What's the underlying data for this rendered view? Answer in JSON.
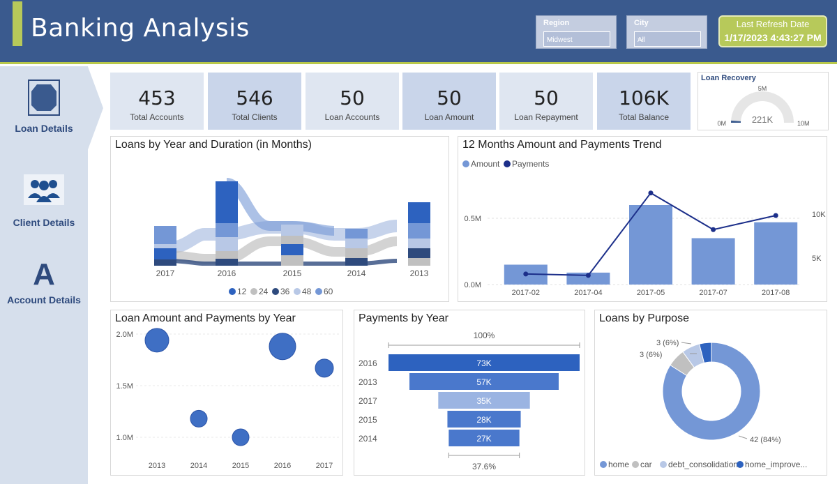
{
  "header": {
    "title": "Banking Analysis",
    "region": {
      "label": "Region",
      "value": "Midwest"
    },
    "city": {
      "label": "City",
      "value": "All"
    },
    "refresh": {
      "label": "Last Refresh Date",
      "value": "1/17/2023 4:43:27 PM"
    }
  },
  "nav": [
    {
      "label": "Loan Details",
      "icon": "loan-details-icon"
    },
    {
      "label": "Client Details",
      "icon": "client-group-icon"
    },
    {
      "label": "Account Details",
      "icon": "letter-a-icon"
    }
  ],
  "kpis": [
    {
      "value": "453",
      "label": "Total Accounts"
    },
    {
      "value": "546",
      "label": "Total Clients"
    },
    {
      "value": "50",
      "label": "Loan Accounts"
    },
    {
      "value": "50",
      "label": "Loan Amount"
    },
    {
      "value": "50",
      "label": "Loan Repayment"
    },
    {
      "value": "106K",
      "label": "Total Balance"
    }
  ],
  "gauge": {
    "title": "Loan Recovery",
    "value": "221K",
    "min": "0M",
    "max": "10M",
    "target": "5M",
    "fraction": 0.022
  },
  "colors": {
    "header": "#3a5a8e",
    "accent": "#b7c95a",
    "sidebar": "#d6dfec",
    "bar": "#7497d6",
    "line": "#1c2f8a",
    "bubble": "#3f6fc4"
  },
  "chart_data": [
    {
      "type": "area",
      "title": "Loans by Year and Duration (in Months)",
      "categories": [
        "2017",
        "2016",
        "2015",
        "2014",
        "2013"
      ],
      "legend": [
        "12",
        "24",
        "36",
        "48",
        "60"
      ],
      "series_colors": [
        "#2d62bf",
        "#c0c0c0",
        "#2e4a7d",
        "#b8c8e6",
        "#7497d6"
      ]
    },
    {
      "type": "bar",
      "title": "12 Months Amount and Payments Trend",
      "legend": [
        "Amount",
        "Payments"
      ],
      "categories": [
        "2017-02",
        "2017-04",
        "2017-05",
        "2017-07",
        "2017-08"
      ],
      "series": [
        {
          "name": "Amount",
          "values": [
            0.15,
            0.09,
            0.6,
            0.35,
            0.47
          ]
        },
        {
          "name": "Payments",
          "values": [
            1500,
            1300,
            13000,
            7800,
            9800
          ]
        }
      ],
      "y_left_ticks": [
        "0.0M",
        "0.5M"
      ],
      "y_right_ticks": [
        "5K",
        "10K"
      ]
    },
    {
      "type": "scatter",
      "title": "Loan Amount and Payments by Year",
      "x_ticks": [
        "2013",
        "2014",
        "2015",
        "2016",
        "2017"
      ],
      "y_ticks": [
        "1.0M",
        "1.5M",
        "2.0M"
      ],
      "points": [
        {
          "x": 2013,
          "y": 1.94,
          "r": 17
        },
        {
          "x": 2014,
          "y": 1.18,
          "r": 12
        },
        {
          "x": 2015,
          "y": 1.0,
          "r": 12
        },
        {
          "x": 2016,
          "y": 1.88,
          "r": 19
        },
        {
          "x": 2017,
          "y": 1.67,
          "r": 13
        }
      ]
    },
    {
      "type": "bar",
      "title": "Payments by Year",
      "top_label": "100%",
      "bottom_label": "37.6%",
      "categories": [
        "2016",
        "2013",
        "2017",
        "2015",
        "2014"
      ],
      "values": [
        73,
        57,
        35,
        28,
        27
      ],
      "value_labels": [
        "73K",
        "57K",
        "35K",
        "28K",
        "27K"
      ]
    },
    {
      "type": "pie",
      "title": "Loans by Purpose",
      "categories": [
        "home",
        "car",
        "debt_consolidation",
        "home_improve..."
      ],
      "values": [
        42,
        3,
        3,
        2
      ],
      "colors": [
        "#7497d6",
        "#c0c0c0",
        "#b8c8e6",
        "#2d62bf"
      ],
      "labels": [
        "42 (84%)",
        "3 (6%)",
        "3 (6%)"
      ]
    }
  ]
}
